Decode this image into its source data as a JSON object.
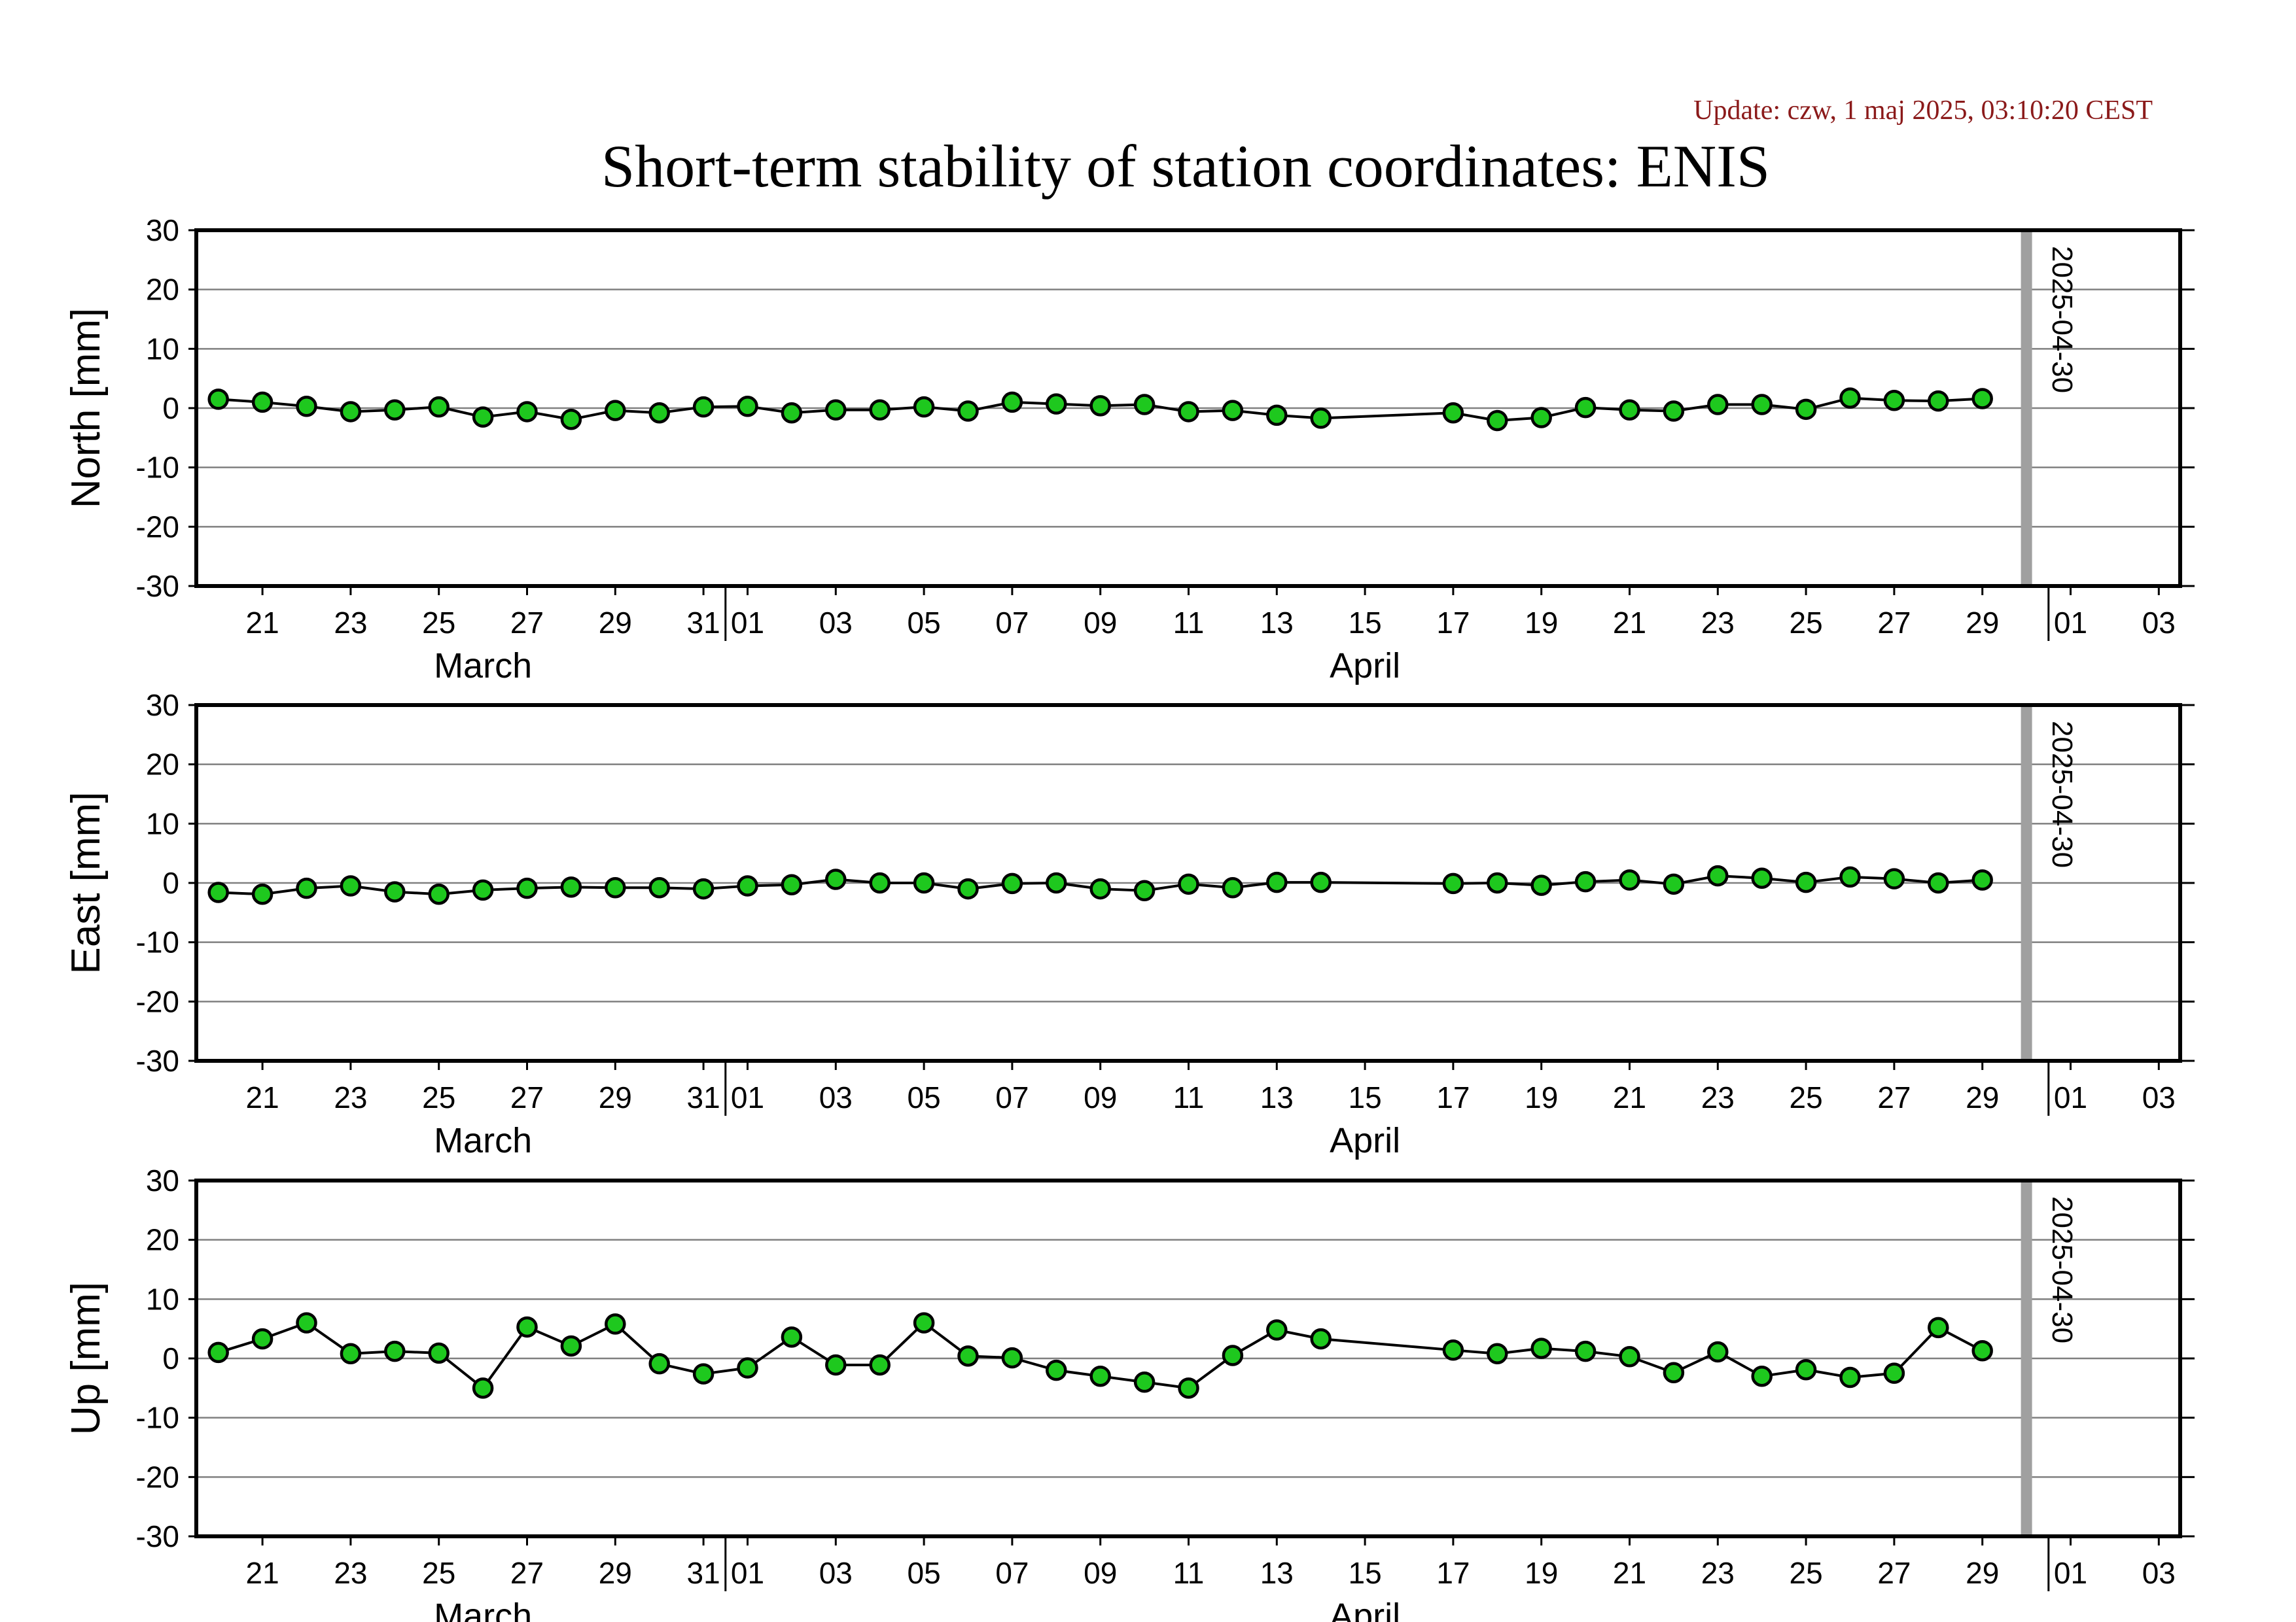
{
  "update_text": "Update: czw, 1 maj 2025, 03:10:20 CEST",
  "title": "Short-term stability of station coordinates: ENIS",
  "marker_label": "2025-04-30",
  "colors": {
    "update": "#8b1a1a",
    "point_fill": "#1ec81e",
    "marker": "#a0a0a0",
    "grid": "#808080"
  },
  "x_axis": {
    "tick_labels": [
      "21",
      "23",
      "25",
      "27",
      "29",
      "31",
      "01",
      "03",
      "05",
      "07",
      "09",
      "11",
      "13",
      "15",
      "17",
      "19",
      "21",
      "23",
      "25",
      "27",
      "29",
      "01",
      "03"
    ],
    "month_labels": [
      "March",
      "April"
    ]
  },
  "chart_data": [
    {
      "type": "line",
      "ylabel": "North [mm]",
      "ylim": [
        -30,
        30
      ],
      "yticks": [
        "30",
        "20",
        "10",
        "0",
        "-10",
        "-20",
        "-30"
      ],
      "grid": true,
      "marker_date": "2025-04-30",
      "x": [
        "2025-03-20",
        "2025-03-21",
        "2025-03-22",
        "2025-03-23",
        "2025-03-24",
        "2025-03-25",
        "2025-03-26",
        "2025-03-27",
        "2025-03-28",
        "2025-03-29",
        "2025-03-30",
        "2025-03-31",
        "2025-04-01",
        "2025-04-02",
        "2025-04-03",
        "2025-04-04",
        "2025-04-05",
        "2025-04-06",
        "2025-04-07",
        "2025-04-08",
        "2025-04-09",
        "2025-04-10",
        "2025-04-11",
        "2025-04-12",
        "2025-04-13",
        "2025-04-14",
        "2025-04-17",
        "2025-04-18",
        "2025-04-19",
        "2025-04-20",
        "2025-04-21",
        "2025-04-22",
        "2025-04-23",
        "2025-04-24",
        "2025-04-25",
        "2025-04-26",
        "2025-04-27",
        "2025-04-28",
        "2025-04-29"
      ],
      "values": [
        1.5,
        1.0,
        0.3,
        -0.6,
        -0.3,
        0.2,
        -1.5,
        -0.6,
        -1.9,
        -0.4,
        -0.8,
        0.2,
        0.3,
        -0.8,
        -0.3,
        -0.3,
        0.2,
        -0.5,
        1.0,
        0.7,
        0.4,
        0.6,
        -0.6,
        -0.4,
        -1.2,
        -1.7,
        -0.8,
        -2.1,
        -1.6,
        0.1,
        -0.3,
        -0.5,
        0.6,
        0.6,
        -0.2,
        1.7,
        1.3,
        1.2,
        1.6
      ]
    },
    {
      "type": "line",
      "ylabel": "East [mm]",
      "ylim": [
        -30,
        30
      ],
      "yticks": [
        "30",
        "20",
        "10",
        "0",
        "-10",
        "-20",
        "-30"
      ],
      "grid": true,
      "marker_date": "2025-04-30",
      "x": [
        "2025-03-20",
        "2025-03-21",
        "2025-03-22",
        "2025-03-23",
        "2025-03-24",
        "2025-03-25",
        "2025-03-26",
        "2025-03-27",
        "2025-03-28",
        "2025-03-29",
        "2025-03-30",
        "2025-03-31",
        "2025-04-01",
        "2025-04-02",
        "2025-04-03",
        "2025-04-04",
        "2025-04-05",
        "2025-04-06",
        "2025-04-07",
        "2025-04-08",
        "2025-04-09",
        "2025-04-10",
        "2025-04-11",
        "2025-04-12",
        "2025-04-13",
        "2025-04-14",
        "2025-04-17",
        "2025-04-18",
        "2025-04-19",
        "2025-04-20",
        "2025-04-21",
        "2025-04-22",
        "2025-04-23",
        "2025-04-24",
        "2025-04-25",
        "2025-04-26",
        "2025-04-27",
        "2025-04-28",
        "2025-04-29"
      ],
      "values": [
        -1.6,
        -1.9,
        -0.9,
        -0.5,
        -1.5,
        -1.9,
        -1.2,
        -0.9,
        -0.7,
        -0.8,
        -0.8,
        -1.0,
        -0.5,
        -0.3,
        0.6,
        0.0,
        0.0,
        -1.0,
        -0.1,
        0.0,
        -1.0,
        -1.3,
        -0.2,
        -0.8,
        0.1,
        0.1,
        -0.1,
        0.0,
        -0.4,
        0.2,
        0.5,
        -0.2,
        1.2,
        0.8,
        0.1,
        1.0,
        0.7,
        0.0,
        0.5
      ]
    },
    {
      "type": "line",
      "ylabel": "Up [mm]",
      "ylim": [
        -30,
        30
      ],
      "yticks": [
        "30",
        "20",
        "10",
        "0",
        "-10",
        "-20",
        "-30"
      ],
      "grid": true,
      "marker_date": "2025-04-30",
      "x": [
        "2025-03-20",
        "2025-03-21",
        "2025-03-22",
        "2025-03-23",
        "2025-03-24",
        "2025-03-25",
        "2025-03-26",
        "2025-03-27",
        "2025-03-28",
        "2025-03-29",
        "2025-03-30",
        "2025-03-31",
        "2025-04-01",
        "2025-04-02",
        "2025-04-03",
        "2025-04-04",
        "2025-04-05",
        "2025-04-06",
        "2025-04-07",
        "2025-04-08",
        "2025-04-09",
        "2025-04-10",
        "2025-04-11",
        "2025-04-12",
        "2025-04-13",
        "2025-04-14",
        "2025-04-17",
        "2025-04-18",
        "2025-04-19",
        "2025-04-20",
        "2025-04-21",
        "2025-04-22",
        "2025-04-23",
        "2025-04-24",
        "2025-04-25",
        "2025-04-26",
        "2025-04-27",
        "2025-04-28",
        "2025-04-29"
      ],
      "values": [
        1.0,
        3.3,
        6.0,
        0.8,
        1.2,
        0.9,
        -5.0,
        5.3,
        2.1,
        5.8,
        -0.9,
        -2.6,
        -1.6,
        3.6,
        -1.1,
        -1.1,
        6.0,
        0.4,
        0.1,
        -2.0,
        -3.0,
        -4.0,
        -5.0,
        0.5,
        4.8,
        3.3,
        1.4,
        0.8,
        1.7,
        1.2,
        0.3,
        -2.4,
        1.1,
        -3.0,
        -1.9,
        -3.2,
        -2.5,
        5.2,
        1.3
      ]
    }
  ]
}
